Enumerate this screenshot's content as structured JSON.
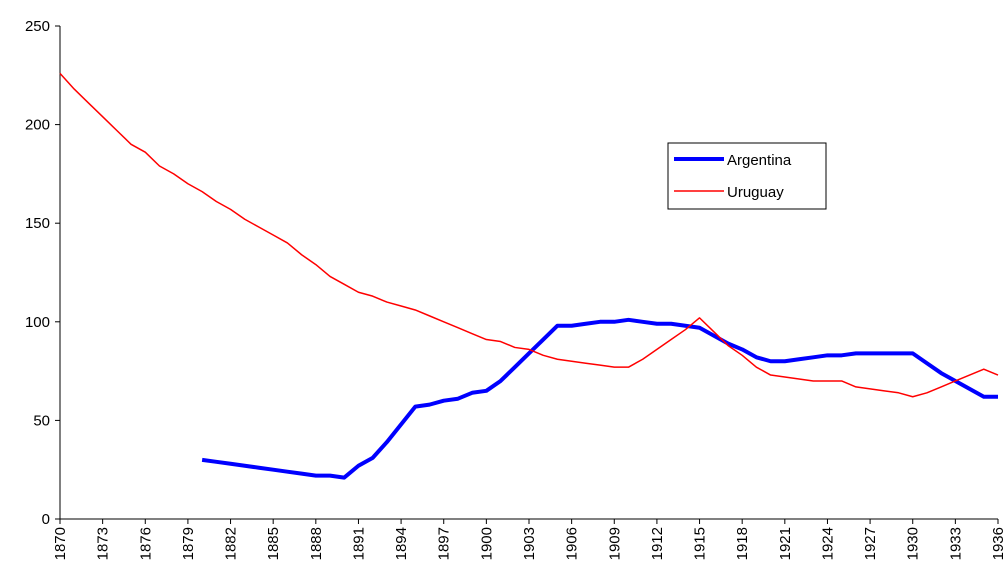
{
  "chart_data": {
    "type": "line",
    "x": [
      1870,
      1871,
      1872,
      1873,
      1874,
      1875,
      1876,
      1877,
      1878,
      1879,
      1880,
      1881,
      1882,
      1883,
      1884,
      1885,
      1886,
      1887,
      1888,
      1889,
      1890,
      1891,
      1892,
      1893,
      1894,
      1895,
      1896,
      1897,
      1898,
      1899,
      1900,
      1901,
      1902,
      1903,
      1904,
      1905,
      1906,
      1907,
      1908,
      1909,
      1910,
      1911,
      1912,
      1913,
      1914,
      1915,
      1916,
      1917,
      1918,
      1919,
      1920,
      1921,
      1922,
      1923,
      1924,
      1925,
      1926,
      1927,
      1928,
      1929,
      1930,
      1931,
      1932,
      1933,
      1934,
      1935,
      1936
    ],
    "series": [
      {
        "name": "Argentina",
        "color": "#0000ff",
        "values": [
          null,
          null,
          null,
          null,
          null,
          null,
          null,
          null,
          null,
          null,
          30,
          29,
          28,
          27,
          26,
          25,
          24,
          23,
          22,
          22,
          21,
          27,
          31,
          39,
          48,
          57,
          58,
          60,
          61,
          64,
          65,
          70,
          77,
          84,
          91,
          98,
          98,
          99,
          100,
          100,
          101,
          100,
          99,
          99,
          98,
          97,
          93,
          89,
          86,
          82,
          80,
          80,
          81,
          82,
          83,
          83,
          84,
          84,
          84,
          84,
          84,
          79,
          74,
          70,
          66,
          62,
          62
        ]
      },
      {
        "name": "Uruguay",
        "color": "#ff0000",
        "values": [
          226,
          218,
          211,
          204,
          197,
          190,
          186,
          179,
          175,
          170,
          166,
          161,
          157,
          152,
          148,
          144,
          140,
          134,
          129,
          123,
          119,
          115,
          113,
          110,
          108,
          106,
          103,
          100,
          97,
          94,
          91,
          90,
          87,
          86,
          83,
          81,
          80,
          79,
          78,
          77,
          77,
          81,
          86,
          91,
          96,
          102,
          95,
          88,
          83,
          77,
          73,
          72,
          71,
          70,
          70,
          70,
          67,
          66,
          65,
          64,
          62,
          64,
          67,
          70,
          73,
          76,
          73
        ]
      }
    ],
    "xlim": [
      1870,
      1936
    ],
    "xticks": [
      1870,
      1873,
      1876,
      1879,
      1882,
      1885,
      1888,
      1891,
      1894,
      1897,
      1900,
      1903,
      1906,
      1909,
      1912,
      1915,
      1918,
      1921,
      1924,
      1927,
      1930,
      1933,
      1936
    ],
    "ylim": [
      0,
      250
    ],
    "yticks": [
      0,
      50,
      100,
      150,
      200,
      250
    ],
    "grid": false,
    "legend": "right"
  }
}
